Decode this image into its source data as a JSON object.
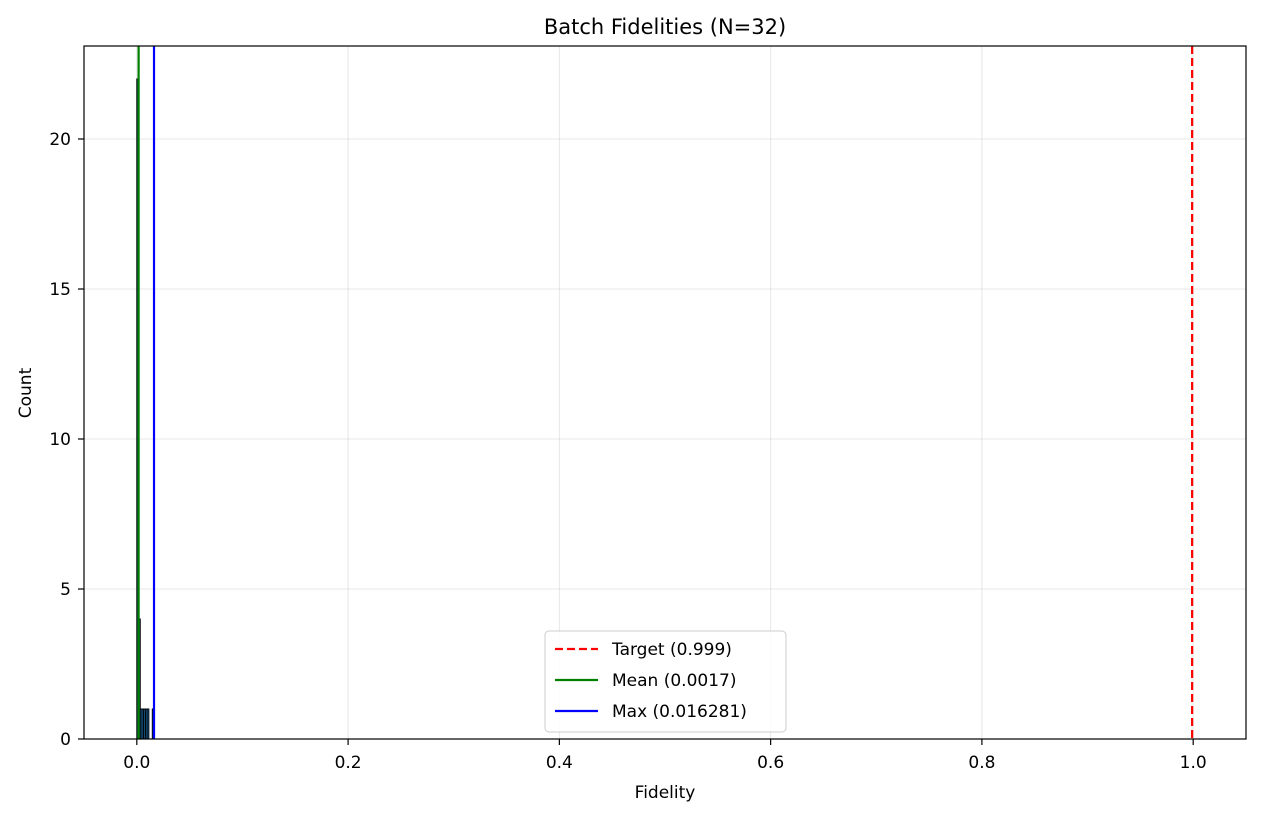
{
  "chart_data": {
    "type": "bar",
    "title": "Batch Fidelities (N=32)",
    "xlabel": "Fidelity",
    "ylabel": "Count",
    "xlim": [
      -0.05,
      1.05
    ],
    "ylim": [
      0,
      23.1
    ],
    "xticks": [
      0.0,
      0.2,
      0.4,
      0.6,
      0.8,
      1.0
    ],
    "xtick_labels": [
      "0.0",
      "0.2",
      "0.4",
      "0.6",
      "0.8",
      "1.0"
    ],
    "yticks": [
      0,
      5,
      10,
      15,
      20
    ],
    "ytick_labels": [
      "0",
      "5",
      "10",
      "15",
      "20"
    ],
    "grid": true,
    "histogram": {
      "bin_edges": [
        0.0,
        0.0016281,
        0.0032562,
        0.0048843,
        0.0065124,
        0.0081405,
        0.0097686,
        0.0113967,
        0.0130248,
        0.0146529,
        0.016281
      ],
      "counts": [
        22,
        4,
        1,
        1,
        1,
        1,
        1,
        0,
        0,
        1
      ],
      "color": "#1f77b4",
      "edgecolor": "#000000"
    },
    "reference_lines": [
      {
        "label": "Target (0.999)",
        "x": 0.999,
        "color": "#ff0000",
        "style": "dashed"
      },
      {
        "label": "Mean (0.0017)",
        "x": 0.0017,
        "color": "#008000",
        "style": "solid"
      },
      {
        "label": "Max (0.016281)",
        "x": 0.016281,
        "color": "#0000ff",
        "style": "solid"
      }
    ],
    "legend_position": "lower-center"
  }
}
